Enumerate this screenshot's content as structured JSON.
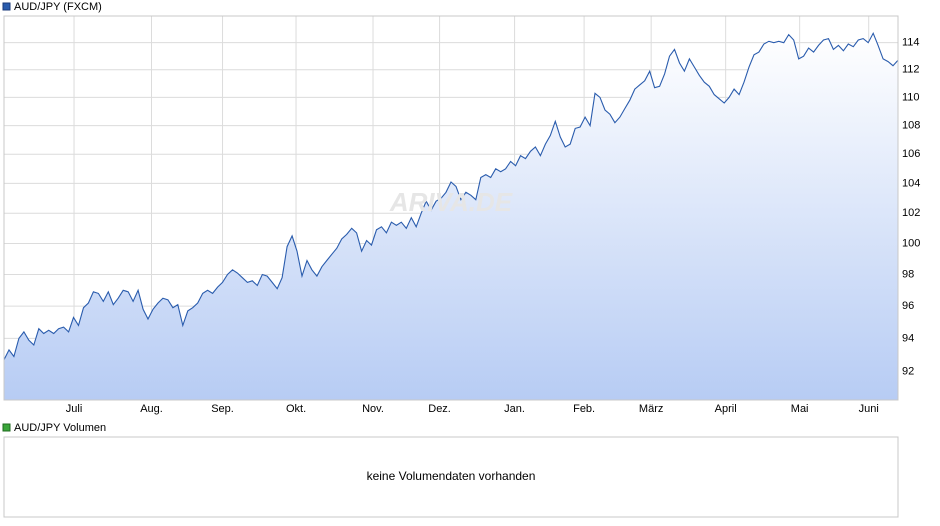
{
  "chart_data": {
    "type": "line",
    "title": "AUD/JPY (FXCM)",
    "watermark": "ARIVA.DE",
    "series": [
      {
        "name": "AUD/JPY (FXCM)",
        "color": "#2a5cad",
        "values": [
          92.7,
          93.3,
          92.9,
          94.0,
          94.4,
          93.9,
          93.6,
          94.6,
          94.3,
          94.5,
          94.3,
          94.6,
          94.7,
          94.4,
          95.3,
          94.8,
          95.9,
          96.2,
          96.9,
          96.8,
          96.3,
          96.9,
          96.1,
          96.5,
          97.0,
          96.9,
          96.3,
          97.0,
          95.8,
          95.2,
          95.8,
          96.2,
          96.5,
          96.4,
          95.9,
          96.1,
          94.8,
          95.7,
          95.9,
          96.2,
          96.8,
          97.0,
          96.8,
          97.2,
          97.5,
          98.0,
          98.3,
          98.1,
          97.8,
          97.5,
          97.6,
          97.3,
          98.0,
          97.9,
          97.5,
          97.1,
          97.8,
          99.8,
          100.5,
          99.5,
          97.9,
          98.9,
          98.3,
          97.9,
          98.5,
          98.9,
          99.3,
          99.7,
          100.3,
          100.6,
          101.0,
          100.7,
          99.5,
          100.2,
          99.9,
          100.9,
          101.1,
          100.7,
          101.4,
          101.2,
          101.4,
          101.0,
          101.7,
          101.1,
          102.0,
          102.8,
          102.2,
          102.8,
          103.0,
          103.4,
          104.1,
          103.8,
          102.9,
          103.4,
          103.2,
          102.9,
          104.4,
          104.6,
          104.4,
          105.0,
          104.8,
          105.0,
          105.5,
          105.2,
          105.9,
          105.7,
          106.2,
          106.5,
          105.9,
          106.7,
          107.3,
          108.3,
          107.2,
          106.5,
          106.7,
          107.8,
          107.9,
          108.6,
          108.0,
          110.3,
          110.0,
          109.1,
          108.8,
          108.2,
          108.6,
          109.2,
          109.8,
          110.6,
          110.9,
          111.2,
          111.9,
          110.7,
          110.8,
          111.7,
          113.0,
          113.5,
          112.5,
          111.9,
          112.8,
          112.2,
          111.6,
          111.1,
          110.8,
          110.2,
          109.9,
          109.6,
          110.0,
          110.6,
          110.2,
          111.1,
          112.2,
          113.1,
          113.3,
          113.9,
          114.1,
          114.0,
          114.1,
          114.0,
          114.6,
          114.2,
          112.8,
          113.0,
          113.6,
          113.3,
          113.8,
          114.2,
          114.3,
          113.5,
          113.8,
          113.4,
          113.9,
          113.7,
          114.2,
          114.3,
          114.0,
          114.7,
          113.8,
          112.8,
          112.6,
          112.3,
          112.7
        ]
      }
    ],
    "xlim": [
      0,
      180
    ],
    "xticks": [
      {
        "value": 14.1,
        "label": "Juli"
      },
      {
        "value": 29.7,
        "label": "Aug."
      },
      {
        "value": 44.0,
        "label": "Sep."
      },
      {
        "value": 58.8,
        "label": "Okt."
      },
      {
        "value": 74.3,
        "label": "Nov."
      },
      {
        "value": 87.7,
        "label": "Dez."
      },
      {
        "value": 102.8,
        "label": "Jan."
      },
      {
        "value": 116.8,
        "label": "Feb."
      },
      {
        "value": 130.3,
        "label": "März"
      },
      {
        "value": 145.3,
        "label": "April"
      },
      {
        "value": 160.2,
        "label": "Mai"
      },
      {
        "value": 174.1,
        "label": "Juni"
      }
    ],
    "ylim": [
      90.3,
      116.0
    ],
    "yticks": [
      92,
      94,
      96,
      98,
      100,
      102,
      104,
      106,
      108,
      110,
      112,
      114
    ],
    "log_scale": true,
    "grid": true,
    "volume_legend": {
      "name": "AUD/JPY Volumen",
      "color": "#3aa63a"
    },
    "volume_message": "keine Volumendaten vorhanden"
  }
}
